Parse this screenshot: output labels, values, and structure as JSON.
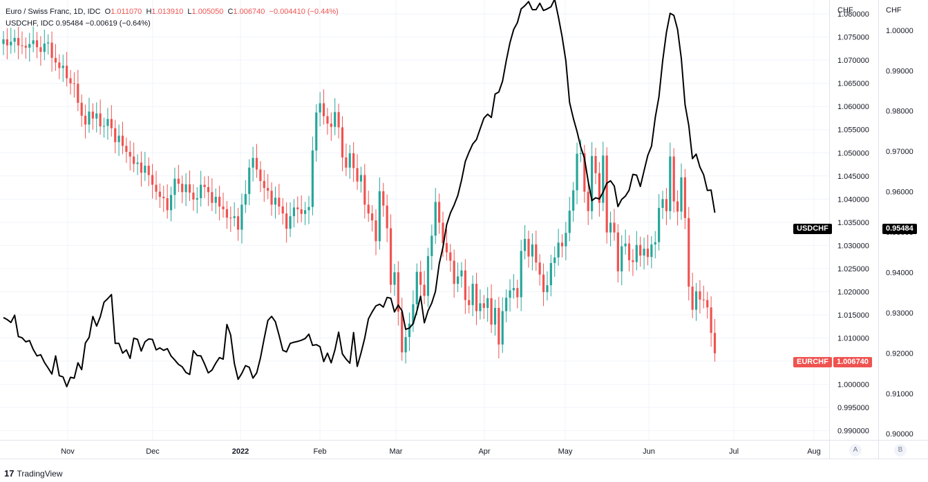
{
  "legend": {
    "symbol_title": "Euro / Swiss Franc, 1D, IDC",
    "open_label": "O",
    "open": "1.011070",
    "high_label": "H",
    "high": "1.013910",
    "low_label": "L",
    "low": "1.005050",
    "close_label": "C",
    "close": "1.006740",
    "change": "−0.004410 (−0.44%)",
    "usd_line": "USDCHF, IDC  0.95484  −0.00619 (−0.64%)"
  },
  "scales": {
    "a_title": "CHF",
    "b_title": "CHF",
    "a_button": "A",
    "b_button": "B"
  },
  "tags": {
    "usdchf_name": "USDCHF",
    "usdchf_value": "0.95484",
    "eurchf_name": "EURCHF",
    "eurchf_value": "1.006740"
  },
  "brand": {
    "logo": "17",
    "name": "TradingView"
  },
  "colors": {
    "up": "#26a69a",
    "down": "#ef5350",
    "line": "#000000",
    "grid": "#f0f3fa"
  },
  "chart_data": [
    {
      "type": "candlestick",
      "name": "EURCHF",
      "scale": "A",
      "x_axis_labels": [
        "Nov",
        "Dec",
        "2022",
        "Feb",
        "Mar",
        "Apr",
        "May",
        "Jun",
        "Jul",
        "Aug"
      ],
      "y_ticks": [
        "0.990000",
        "0.995000",
        "1.000000",
        "1.005000",
        "1.010000",
        "1.015000",
        "1.020000",
        "1.025000",
        "1.030000",
        "1.035000",
        "1.040000",
        "1.045000",
        "1.050000",
        "1.055000",
        "1.060000",
        "1.065000",
        "1.070000",
        "1.075000",
        "1.080000"
      ],
      "ylim": [
        0.988,
        1.083
      ],
      "closes": [
        1.0745,
        1.0732,
        1.074,
        1.0748,
        1.0732,
        1.0731,
        1.0727,
        1.0735,
        1.0743,
        1.0728,
        1.0718,
        1.0736,
        1.0738,
        1.0705,
        1.0695,
        1.0683,
        1.0688,
        1.0661,
        1.065,
        1.0649,
        1.0608,
        1.058,
        1.0561,
        1.0589,
        1.0574,
        1.0585,
        1.0557,
        1.0558,
        1.0573,
        1.0553,
        1.0523,
        1.0537,
        1.0515,
        1.0502,
        1.0492,
        1.0476,
        1.0479,
        1.0457,
        1.0472,
        1.0452,
        1.0431,
        1.0416,
        1.0405,
        1.0402,
        1.0376,
        1.0409,
        1.0444,
        1.0433,
        1.0415,
        1.0432,
        1.0414,
        1.0399,
        1.0402,
        1.0431,
        1.0426,
        1.0415,
        1.0392,
        1.0405,
        1.0384,
        1.0378,
        1.036,
        1.0359,
        1.0363,
        1.0334,
        1.0388,
        1.0411,
        1.0468,
        1.0489,
        1.0464,
        1.0439,
        1.0424,
        1.0418,
        1.0388,
        1.0403,
        1.0384,
        1.0369,
        1.0336,
        1.0363,
        1.0382,
        1.0378,
        1.0368,
        1.0376,
        1.0383,
        1.0505,
        1.0587,
        1.0607,
        1.0579,
        1.0563,
        1.0556,
        1.0588,
        1.0555,
        1.049,
        1.0468,
        1.0499,
        1.0467,
        1.0438,
        1.0452,
        1.0388,
        1.0369,
        1.0354,
        1.0309,
        1.0417,
        1.0386,
        1.0337,
        1.0215,
        1.0242,
        1.0157,
        1.0069,
        1.0102,
        1.0131,
        1.0173,
        1.0243,
        1.0215,
        1.0191,
        1.0277,
        1.0321,
        1.0394,
        1.0349,
        1.0305,
        1.0285,
        1.0267,
        1.0217,
        1.0233,
        1.0246,
        1.0182,
        1.0171,
        1.0217,
        1.0158,
        1.0175,
        1.0165,
        1.0186,
        1.0129,
        1.0165,
        1.0086,
        1.0158,
        1.0187,
        1.0203,
        1.0208,
        1.0188,
        1.0288,
        1.0314,
        1.0276,
        1.0302,
        1.0263,
        1.0237,
        1.0199,
        1.0214,
        1.0262,
        1.0274,
        1.0306,
        1.0298,
        1.0327,
        1.0375,
        1.0419,
        1.0498,
        1.0499,
        1.0416,
        1.0374,
        1.0493,
        1.0456,
        1.0392,
        1.0494,
        1.0328,
        1.0349,
        1.0328,
        1.0244,
        1.0298,
        1.0304,
        1.0268,
        1.0264,
        1.0301,
        1.0278,
        1.0293,
        1.0275,
        1.0302,
        1.0307,
        1.0381,
        1.04,
        1.0374,
        1.0492,
        1.0395,
        1.0373,
        1.0447,
        1.0359,
        1.0211,
        1.0161,
        1.0201,
        1.0183,
        1.0182,
        1.0166,
        1.0111,
        1.0067
      ],
      "last": 1.00674
    },
    {
      "type": "line",
      "name": "USDCHF",
      "scale": "B",
      "y_ticks": [
        "0.90000",
        "0.91000",
        "0.92000",
        "0.93000",
        "0.94000",
        "0.95000",
        "0.96000",
        "0.97000",
        "0.98000",
        "0.99000",
        "1.00000"
      ],
      "ylim": [
        0.8985,
        1.0075
      ],
      "values": [
        0.9288,
        0.9283,
        0.9276,
        0.9294,
        0.9241,
        0.9238,
        0.9228,
        0.9231,
        0.9209,
        0.9193,
        0.9196,
        0.9177,
        0.9163,
        0.9148,
        0.9193,
        0.9144,
        0.9141,
        0.9117,
        0.914,
        0.9138,
        0.9176,
        0.9159,
        0.9225,
        0.9239,
        0.9291,
        0.9267,
        0.929,
        0.9326,
        0.9335,
        0.9345,
        0.9224,
        0.9224,
        0.92,
        0.9208,
        0.9187,
        0.9237,
        0.9234,
        0.9205,
        0.9228,
        0.9235,
        0.9234,
        0.9208,
        0.9213,
        0.9207,
        0.9211,
        0.9193,
        0.9183,
        0.9172,
        0.9166,
        0.9152,
        0.9147,
        0.9206,
        0.9194,
        0.9193,
        0.9173,
        0.9151,
        0.9158,
        0.9175,
        0.9189,
        0.9185,
        0.9271,
        0.9245,
        0.9174,
        0.9135,
        0.915,
        0.9169,
        0.9165,
        0.9138,
        0.9151,
        0.9188,
        0.9236,
        0.9281,
        0.9291,
        0.9278,
        0.9244,
        0.9207,
        0.9203,
        0.9224,
        0.9227,
        0.9229,
        0.9232,
        0.9236,
        0.9247,
        0.9219,
        0.9221,
        0.9216,
        0.9179,
        0.92,
        0.9176,
        0.9208,
        0.9252,
        0.9198,
        0.9185,
        0.9175,
        0.9251,
        0.9167,
        0.92,
        0.9237,
        0.9285,
        0.9302,
        0.9317,
        0.9321,
        0.9314,
        0.9338,
        0.9336,
        0.9302,
        0.9319,
        0.9305,
        0.9259,
        0.9262,
        0.9273,
        0.9304,
        0.9341,
        0.9275,
        0.9305,
        0.9324,
        0.9353,
        0.9421,
        0.9462,
        0.9518,
        0.9547,
        0.9567,
        0.9591,
        0.9629,
        0.9675,
        0.9698,
        0.9718,
        0.9729,
        0.9756,
        0.9782,
        0.9792,
        0.9784,
        0.9842,
        0.9847,
        0.9874,
        0.9924,
        0.9969,
        1.0002,
        1.0019,
        1.0053,
        1.0061,
        1.0071,
        1.0051,
        1.0051,
        1.0067,
        1.0049,
        1.0053,
        1.0058,
        1.0077,
        1.0033,
        0.9984,
        0.9924,
        0.9821,
        0.9782,
        0.9749,
        0.9711,
        0.9683,
        0.9626,
        0.9578,
        0.9585,
        0.9582,
        0.9599,
        0.9621,
        0.9627,
        0.9614,
        0.9563,
        0.9581,
        0.9589,
        0.9604,
        0.9643,
        0.9641,
        0.9613,
        0.9652,
        0.969,
        0.9713,
        0.9784,
        0.9835,
        0.9924,
        0.9994,
        1.0042,
        1.0037,
        1.0002,
        0.993,
        0.9816,
        0.9764,
        0.9682,
        0.9693,
        0.9661,
        0.9642,
        0.9603,
        0.9604,
        0.9548
      ],
      "last": 0.95484
    }
  ]
}
